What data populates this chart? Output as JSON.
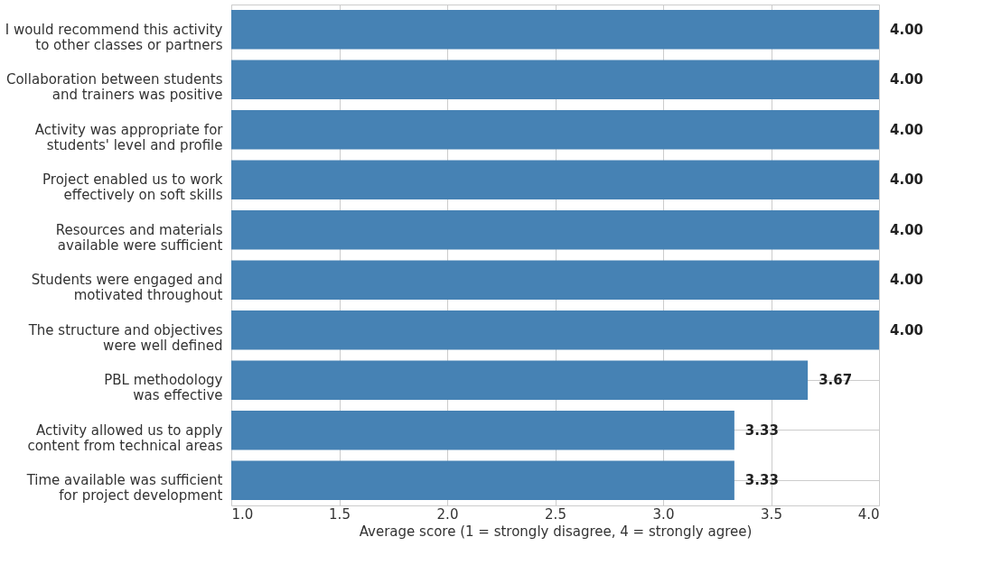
{
  "chart_data": {
    "type": "bar",
    "orientation": "horizontal",
    "xlabel": "Average score (1 = strongly disagree, 4 = strongly agree)",
    "categories": [
      "I would recommend this activity\nto other classes or partners",
      "Collaboration between students\nand trainers was positive",
      "Activity was appropriate for\nstudents' level and profile",
      "Project enabled us to work\neffectively on soft skills",
      "Resources and materials\navailable were sufficient",
      "Students were engaged and\nmotivated throughout",
      "The structure and objectives\nwere well defined",
      "PBL methodology\nwas effective",
      "Activity allowed us to apply\ncontent from technical areas",
      "Time available was sufficient\nfor project development"
    ],
    "values": [
      4,
      4,
      4,
      4,
      4,
      4,
      4,
      3.67,
      3.33,
      3.33
    ],
    "value_labels": [
      "4.00",
      "4.00",
      "4.00",
      "4.00",
      "4.00",
      "4.00",
      "4.00",
      "3.67",
      "3.33",
      "3.33"
    ],
    "color": "#4682b4",
    "xlim": [
      1,
      4
    ],
    "xticks": [
      {
        "value": 1,
        "label": "1.0"
      },
      {
        "value": 1.5,
        "label": "1.5"
      },
      {
        "value": 2,
        "label": "2.0"
      },
      {
        "value": 2.5,
        "label": "2.5"
      },
      {
        "value": 3,
        "label": "3.0"
      },
      {
        "value": 3.5,
        "label": "3.5"
      },
      {
        "value": 4,
        "label": "4.0"
      }
    ],
    "grid": true
  }
}
